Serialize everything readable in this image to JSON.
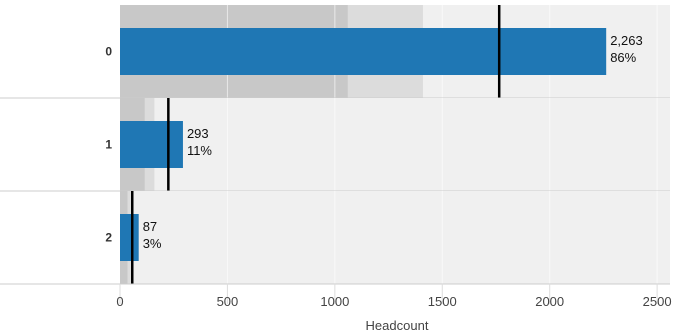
{
  "chart_data": {
    "type": "bar",
    "orientation": "horizontal",
    "subtype": "bullet",
    "categories": [
      "0",
      "1",
      "2"
    ],
    "values": [
      2263,
      293,
      87
    ],
    "percent_labels": [
      "86%",
      "11%",
      "3%"
    ],
    "value_labels": [
      "2,263",
      "293",
      "87"
    ],
    "reference_lines": [
      1765,
      225,
      57
    ],
    "bands": [
      {
        "dark_to": 1060,
        "light_to": 1410
      },
      {
        "dark_to": 115,
        "light_to": 160
      },
      {
        "dark_to": 35,
        "light_to": 50
      }
    ],
    "xlabel": "Headcount",
    "ylabel": "",
    "xlim": [
      0,
      2560
    ],
    "xticks": [
      0,
      500,
      1000,
      1500,
      2000,
      2500
    ],
    "xtick_labels": [
      "0",
      "500",
      "1000",
      "1500",
      "2000",
      "2500"
    ],
    "colors": {
      "bar": "#1f77b4",
      "band_dark": "#c8c8c8",
      "band_light": "#dcdcdc",
      "background": "#f0f0f0",
      "reference_line": "#000000",
      "grid": "#ffffff",
      "separator": "#cccccc"
    },
    "grid": true
  }
}
